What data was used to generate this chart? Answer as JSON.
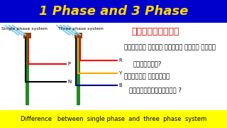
{
  "title": "1 Phase and 3 Phase",
  "title_bg": "#0000CC",
  "title_color": "#FFD700",
  "title_white": "and",
  "bottom_bar_bg": "#FFFF00",
  "bottom_text": "Difference   between  single phase  and  three  phase  system",
  "bottom_text_color": "#000000",
  "main_bg": "#FFFFFF",
  "left_label": "Single phase system",
  "right_label": "Three phase system",
  "kannada_line1": "ಕಂనడదల్లಿ",
  "kannada_line2": "ಸಿಂಗಲ್ ಫೇಸ್ ಮತ್ತು ತ್ರೀ ಫೇಸ್",
  "kannada_line3": "ಎಂದರೇನು?",
  "kannada_line4": "ಇವೆರಡರ ನಡುವಿನ",
  "kannada_line5": "ವ್ಯತ್ಯಾಸಗಳೇನು ?",
  "pole_color": "#228B22",
  "pole_top_color": "#8B4513",
  "sky_blue": "#87CEEB",
  "red": "#FF0000",
  "black": "#000000",
  "orange": "#FFA500",
  "navy": "#000080"
}
